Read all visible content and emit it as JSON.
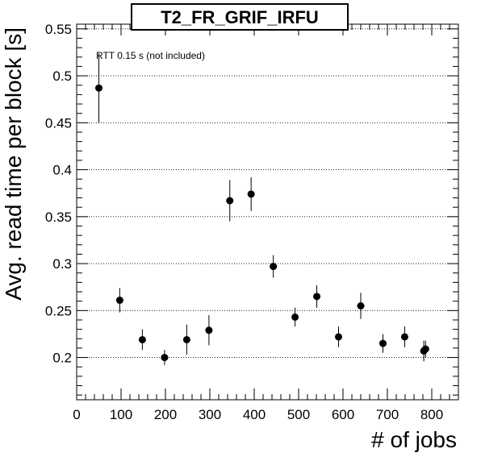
{
  "chart_data": {
    "type": "scatter",
    "title": "T2_FR_GRIF_IRFU",
    "xlabel": "# of jobs",
    "ylabel": "Avg. read time per block [s]",
    "annotation": "RTT 0.15 s (not included)",
    "xlim": [
      0,
      860
    ],
    "ylim": [
      0.155,
      0.555
    ],
    "x_ticks": [
      0,
      100,
      200,
      300,
      400,
      500,
      600,
      700,
      800
    ],
    "y_ticks": [
      0.2,
      0.25,
      0.3,
      0.35,
      0.4,
      0.45,
      0.5,
      0.55
    ],
    "grid": "horizontal dotted",
    "points": [
      {
        "x": 50,
        "y": 0.487,
        "err": 0.037
      },
      {
        "x": 97,
        "y": 0.261,
        "err": 0.013
      },
      {
        "x": 148,
        "y": 0.219,
        "err": 0.011
      },
      {
        "x": 198,
        "y": 0.2,
        "err": 0.008
      },
      {
        "x": 248,
        "y": 0.219,
        "err": 0.016
      },
      {
        "x": 298,
        "y": 0.229,
        "err": 0.016
      },
      {
        "x": 345,
        "y": 0.367,
        "err": 0.022
      },
      {
        "x": 393,
        "y": 0.374,
        "err": 0.018
      },
      {
        "x": 443,
        "y": 0.297,
        "err": 0.012
      },
      {
        "x": 492,
        "y": 0.243,
        "err": 0.01
      },
      {
        "x": 541,
        "y": 0.265,
        "err": 0.012
      },
      {
        "x": 590,
        "y": 0.222,
        "err": 0.011
      },
      {
        "x": 640,
        "y": 0.255,
        "err": 0.014
      },
      {
        "x": 690,
        "y": 0.215,
        "err": 0.01
      },
      {
        "x": 739,
        "y": 0.222,
        "err": 0.011
      },
      {
        "x": 782,
        "y": 0.207,
        "err": 0.011
      },
      {
        "x": 786,
        "y": 0.209,
        "err": 0.009
      }
    ]
  }
}
